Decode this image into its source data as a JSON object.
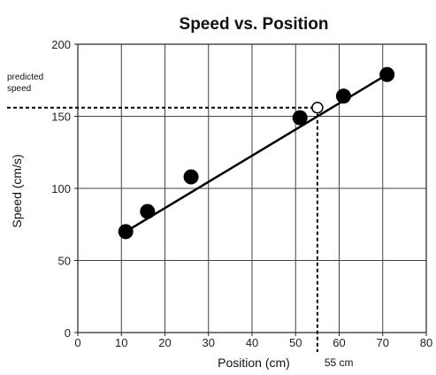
{
  "chart_data": {
    "type": "scatter",
    "title": "Speed vs. Position",
    "xlabel": "Position (cm)",
    "ylabel": "Speed (cm/s)",
    "xlim": [
      0,
      80
    ],
    "ylim": [
      0,
      200
    ],
    "xticks": [
      0,
      10,
      20,
      30,
      40,
      50,
      60,
      70,
      80
    ],
    "yticks": [
      0,
      50,
      100,
      150,
      200
    ],
    "grid": true,
    "series": [
      {
        "points": [
          {
            "x": 11,
            "y": 70
          },
          {
            "x": 16,
            "y": 84
          },
          {
            "x": 26,
            "y": 108
          },
          {
            "x": 51,
            "y": 149
          },
          {
            "x": 61,
            "y": 164
          },
          {
            "x": 71,
            "y": 179
          }
        ],
        "color": "#000000"
      }
    ],
    "fit_line": {
      "from": {
        "x": 11,
        "y": 70
      },
      "to": {
        "x": 71,
        "y": 179
      }
    },
    "prediction": {
      "x": 55,
      "y": 156,
      "marker": "open-circle"
    },
    "annotations": {
      "predicted_speed": [
        "predicted",
        "speed"
      ],
      "x_marker": "55 cm"
    }
  }
}
